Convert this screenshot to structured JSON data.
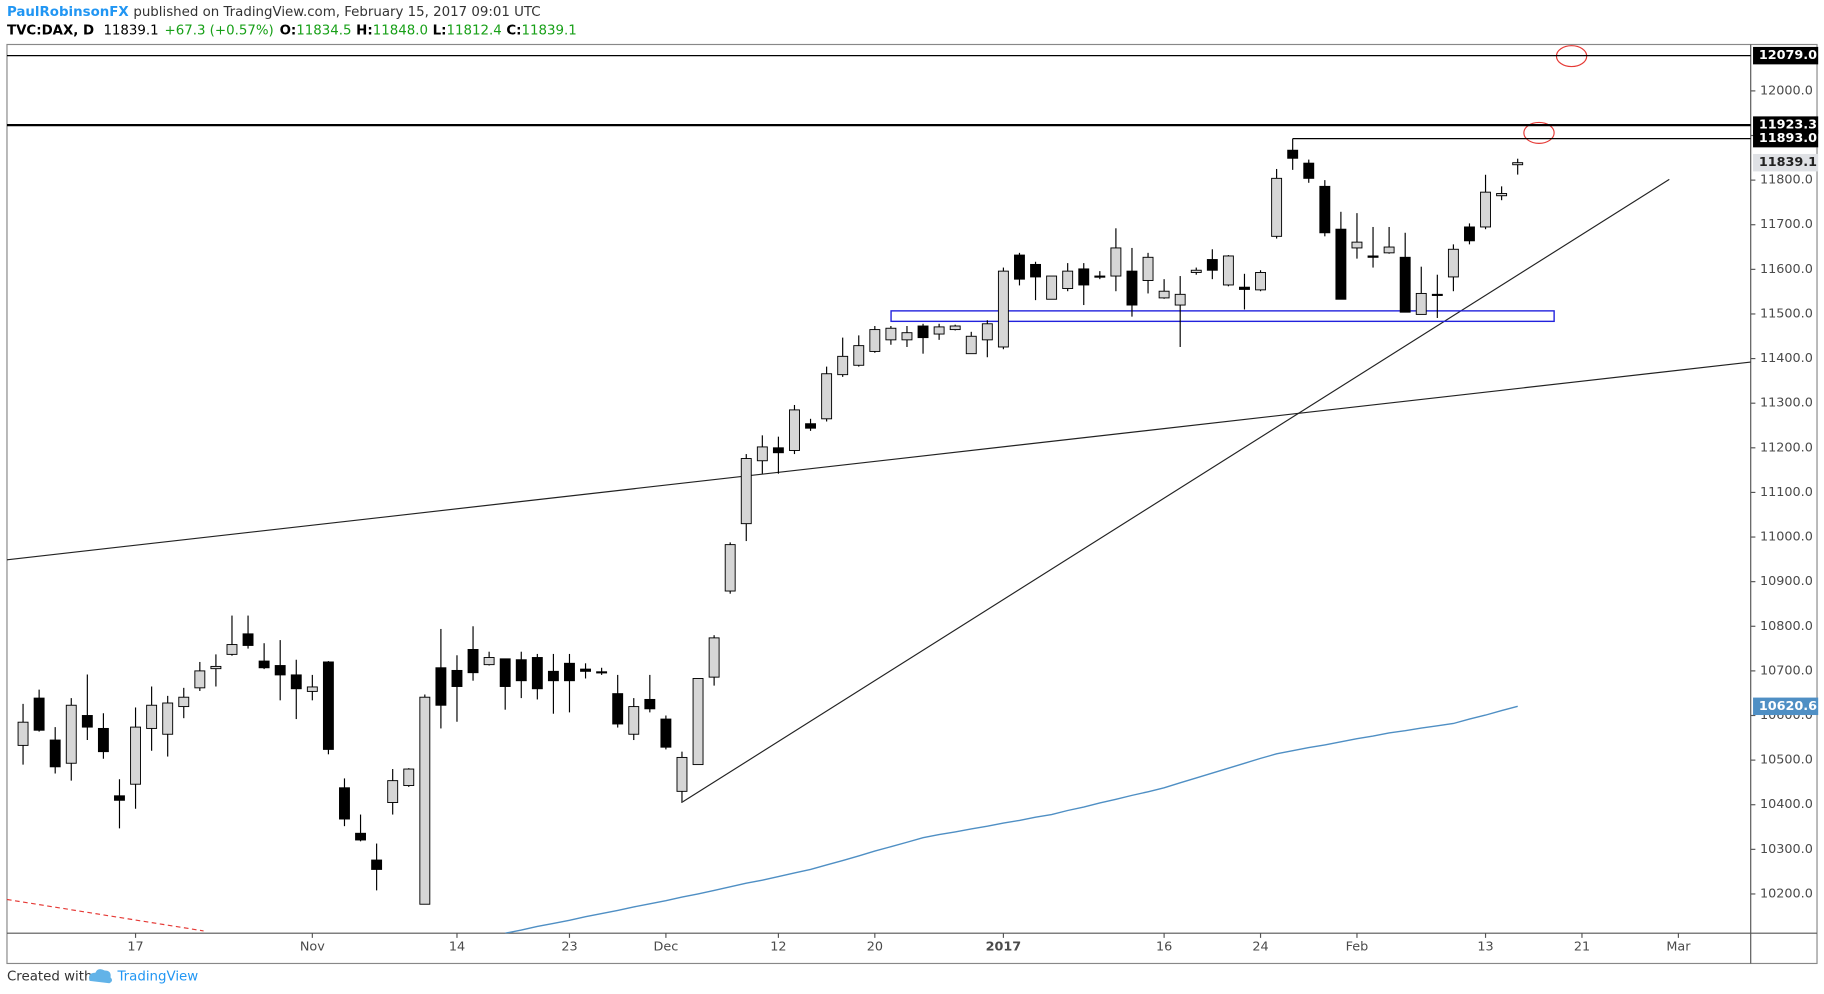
{
  "header": {
    "author": "PaulRobinsonFX",
    "published": "published on TradingView.com, February 15, 2017 09:01 UTC",
    "symbol": "TVC:DAX, D",
    "last": "11839.1",
    "change": "+67.3 (+0.57%)",
    "ohlc": [
      {
        "key": "O:",
        "value": "11834.5"
      },
      {
        "key": "H:",
        "value": "11848.0"
      },
      {
        "key": "L:",
        "value": "11812.4"
      },
      {
        "key": "C:",
        "value": "11839.1"
      }
    ]
  },
  "footer": {
    "created": "Created with",
    "brand": "TradingView"
  },
  "chart_data": {
    "type": "candlestick",
    "up_color": "#d6d6d6",
    "down_color": "#000000",
    "xlim": [
      -1,
      107.5
    ],
    "ylim": [
      10112,
      12104
    ],
    "xticks": [
      {
        "value": 7,
        "label": "17"
      },
      {
        "value": 18,
        "label": "Nov"
      },
      {
        "value": 27,
        "label": "14"
      },
      {
        "value": 34,
        "label": "23"
      },
      {
        "value": 40,
        "label": "Dec"
      },
      {
        "value": 47,
        "label": "12"
      },
      {
        "value": 53,
        "label": "20"
      },
      {
        "value": 61,
        "label": "2017"
      },
      {
        "value": 71,
        "label": "16"
      },
      {
        "value": 77,
        "label": "24"
      },
      {
        "value": 83,
        "label": "Feb"
      },
      {
        "value": 91,
        "label": "13"
      },
      {
        "value": 97,
        "label": "21"
      },
      {
        "value": 103,
        "label": "Mar"
      }
    ],
    "yticks": [
      {
        "value": 10200,
        "label": "10200.0"
      },
      {
        "value": 10300,
        "label": "10300.0"
      },
      {
        "value": 10400,
        "label": "10400.0"
      },
      {
        "value": 10500,
        "label": "10500.0"
      },
      {
        "value": 10600,
        "label": "10600.0"
      },
      {
        "value": 10700,
        "label": "10700.0"
      },
      {
        "value": 10800,
        "label": "10800.0"
      },
      {
        "value": 10900,
        "label": "10900.0"
      },
      {
        "value": 11000,
        "label": "11000.0"
      },
      {
        "value": 11100,
        "label": "11100.0"
      },
      {
        "value": 11200,
        "label": "11200.0"
      },
      {
        "value": 11300,
        "label": "11300.0"
      },
      {
        "value": 11400,
        "label": "11400.0"
      },
      {
        "value": 11500,
        "label": "11500.0"
      },
      {
        "value": 11600,
        "label": "11600.0"
      },
      {
        "value": 11700,
        "label": "11700.0"
      },
      {
        "value": 11800,
        "label": "11800.0"
      },
      {
        "value": 11900,
        "label": "11900.0"
      },
      {
        "value": 12000,
        "label": "12000.0"
      }
    ],
    "levels": [
      {
        "value": 12079.0,
        "label": "12079.0"
      },
      {
        "value": 11923.3,
        "label": "11923.3"
      },
      {
        "value": 11893.0,
        "label": "11893.0"
      }
    ],
    "current": {
      "value": 11839.1,
      "label": "11839.1"
    },
    "candles": {
      "open": [
        10533,
        10639,
        10545,
        10493,
        10600,
        10571,
        10420,
        10446,
        10571,
        10558,
        10620,
        10662,
        10705,
        10737,
        10783,
        10722,
        10712,
        10691,
        10654,
        10720,
        10438,
        10336,
        10276,
        10405,
        10443,
        10177,
        10707,
        10701,
        10748,
        10714,
        10727,
        10725,
        10730,
        10699,
        10717,
        10704,
        10698,
        10649,
        10558,
        10636,
        10592,
        10430,
        10490,
        10686,
        10879,
        11030,
        11171,
        11200,
        11194,
        11254,
        11265,
        11364,
        11385,
        11416,
        11442,
        11442,
        11473,
        11455,
        11465,
        11411,
        11442,
        11426,
        11632,
        11611,
        11533,
        11557,
        11601,
        11585,
        11585,
        11596,
        11575,
        11536,
        11520,
        11593,
        11622,
        11565,
        11560,
        11554,
        11674,
        11867,
        11838,
        11786,
        11690,
        11648,
        11630,
        11637,
        11627,
        11499,
        11544,
        11583,
        11695,
        11695,
        11765,
        11834.5
      ],
      "high": [
        10626,
        10658,
        10574,
        10639,
        10692,
        10605,
        10457,
        10618,
        10665,
        10644,
        10662,
        10720,
        10737,
        10824,
        10824,
        10762,
        10769,
        10725,
        10691,
        10722,
        10459,
        10378,
        10313,
        10480,
        10482,
        10647,
        10794,
        10735,
        10800,
        10743,
        10727,
        10743,
        10738,
        10738,
        10738,
        10717,
        10707,
        10691,
        10639,
        10691,
        10600,
        10519,
        10683,
        10780,
        10988,
        11186,
        11228,
        11225,
        11296,
        11265,
        11382,
        11447,
        11452,
        11473,
        11473,
        11473,
        11478,
        11478,
        11476,
        11460,
        11486,
        11604,
        11637,
        11617,
        11585,
        11614,
        11614,
        11596,
        11692,
        11648,
        11637,
        11578,
        11585,
        11604,
        11645,
        11632,
        11590,
        11598,
        11825,
        11893,
        11846,
        11800,
        11729,
        11726,
        11695,
        11695,
        11682,
        11606,
        11588,
        11656,
        11703,
        11812,
        11786,
        11848.0
      ],
      "low": [
        10490,
        10564,
        10470,
        10454,
        10545,
        10503,
        10347,
        10391,
        10521,
        10508,
        10594,
        10655,
        10665,
        10734,
        10750,
        10704,
        10634,
        10592,
        10634,
        10513,
        10352,
        10318,
        10208,
        10378,
        10440,
        10177,
        10571,
        10586,
        10678,
        10712,
        10613,
        10639,
        10636,
        10604,
        10607,
        10683,
        10691,
        10573,
        10545,
        10607,
        10524,
        10404,
        10490,
        10667,
        10873,
        10991,
        11142,
        11142,
        11186,
        11238,
        11259,
        11359,
        11382,
        11413,
        11431,
        11426,
        11411,
        11442,
        11463,
        11411,
        11403,
        11421,
        11564,
        11531,
        11533,
        11551,
        11520,
        11578,
        11551,
        11494,
        11546,
        11534,
        11426,
        11588,
        11578,
        11562,
        11510,
        11551,
        11669,
        11823,
        11794,
        11674,
        11533,
        11624,
        11604,
        11635,
        11504,
        11499,
        11491,
        11551,
        11656,
        11690,
        11755,
        11812.4
      ],
      "close": [
        10585,
        10567,
        10485,
        10623,
        10574,
        10519,
        10410,
        10574,
        10623,
        10628,
        10641,
        10700,
        10710,
        10759,
        10757,
        10707,
        10691,
        10660,
        10664,
        10524,
        10368,
        10321,
        10255,
        10454,
        10480,
        10641,
        10623,
        10665,
        10696,
        10730,
        10665,
        10678,
        10660,
        10678,
        10678,
        10699,
        10696,
        10581,
        10620,
        10615,
        10529,
        10506,
        10683,
        10774,
        10983,
        11176,
        11202,
        11189,
        11285,
        11244,
        11366,
        11405,
        11429,
        11465,
        11468,
        11458,
        11447,
        11471,
        11473,
        11450,
        11478,
        11596,
        11578,
        11583,
        11585,
        11596,
        11565,
        11583,
        11648,
        11520,
        11627,
        11551,
        11544,
        11598,
        11598,
        11630,
        11555,
        11593,
        11804,
        11849,
        11804,
        11682,
        11533,
        11661,
        11627,
        11650,
        11504,
        11546,
        11542,
        11645,
        11664,
        11773,
        11770,
        11839.1
      ]
    },
    "moving_average": {
      "color": "#4f8fc4",
      "label": "10620.6",
      "values": [
        null,
        null,
        null,
        null,
        null,
        null,
        null,
        null,
        null,
        null,
        null,
        null,
        null,
        null,
        null,
        null,
        null,
        null,
        null,
        null,
        null,
        null,
        null,
        null,
        null,
        null,
        null,
        null,
        null,
        null,
        10112,
        10119,
        10127,
        10134,
        10141,
        10149,
        10156,
        10163,
        10171,
        10178,
        10185,
        10193,
        10200,
        10208,
        10216,
        10224,
        10231,
        10239,
        10247,
        10255,
        10265,
        10275,
        10285,
        10296,
        10306,
        10316,
        10326,
        10333,
        10339,
        10346,
        10352,
        10359,
        10365,
        10372,
        10378,
        10387,
        10395,
        10404,
        10412,
        10421,
        10429,
        10438,
        10449,
        10460,
        10471,
        10482,
        10493,
        10504,
        10514,
        10521,
        10528,
        10534,
        10541,
        10548,
        10554,
        10561,
        10566,
        10572,
        10577,
        10582,
        10592,
        10601,
        10611,
        10620.6
      ]
    }
  }
}
